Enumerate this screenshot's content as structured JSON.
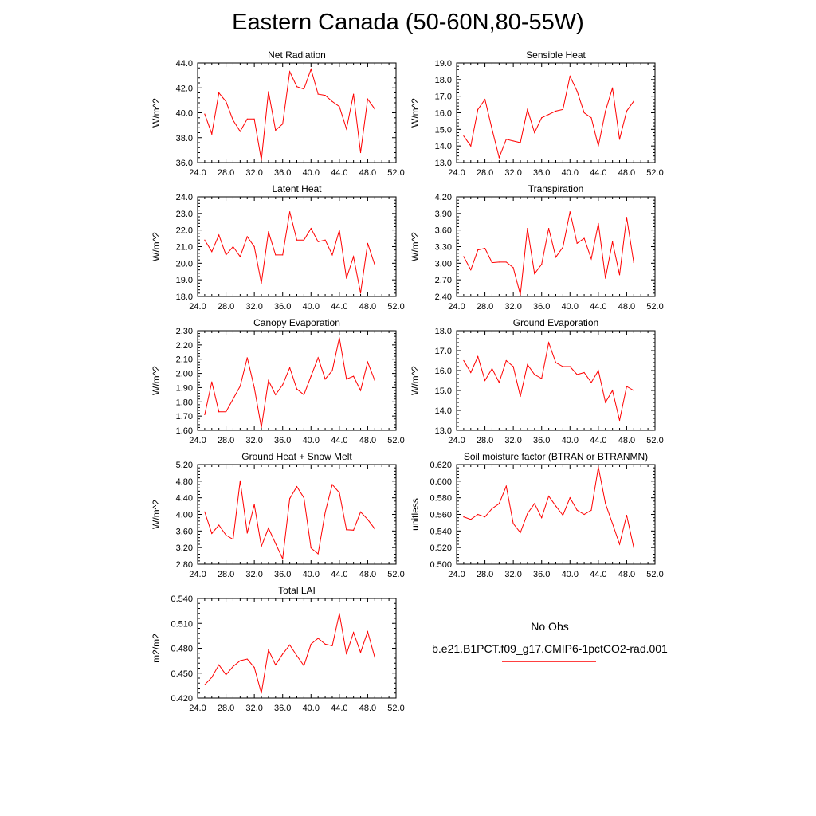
{
  "title": "Eastern Canada (50-60N,80-55W)",
  "legend": {
    "obs_label": "No Obs",
    "model_label": "b.e21.B1PCT.f09_g17.CMIP6-1pctCO2-rad.001",
    "obs_color": "#3a3aa0",
    "model_color": "#ff0000"
  },
  "chart_data": [
    {
      "type": "line",
      "title": "Net Radiation",
      "ylabel": "W/m^2",
      "xlim": [
        24,
        52
      ],
      "ylim": [
        36,
        44
      ],
      "xticks": [
        "24.0",
        "28.0",
        "32.0",
        "36.0",
        "40.0",
        "44.0",
        "48.0",
        "52.0"
      ],
      "yticks": [
        "36.0",
        "38.0",
        "40.0",
        "42.0",
        "44.0"
      ],
      "x": [
        25,
        26,
        27,
        28,
        29,
        30,
        31,
        32,
        33,
        34,
        35,
        36,
        37,
        38,
        39,
        40,
        41,
        42,
        43,
        44,
        45,
        46,
        47,
        48,
        49
      ],
      "series": [
        {
          "values": [
            39.9,
            38.3,
            41.6,
            40.9,
            39.4,
            38.5,
            39.5,
            39.5,
            36.2,
            41.7,
            38.6,
            39.1,
            43.3,
            42.1,
            41.9,
            43.5,
            41.5,
            41.4,
            40.9,
            40.5,
            38.7,
            41.5,
            36.8,
            41.1,
            40.3
          ]
        }
      ]
    },
    {
      "type": "line",
      "title": "Sensible Heat",
      "ylabel": "W/m^2",
      "xlim": [
        24,
        52
      ],
      "ylim": [
        13,
        19
      ],
      "xticks": [
        "24.0",
        "28.0",
        "32.0",
        "36.0",
        "40.0",
        "44.0",
        "48.0",
        "52.0"
      ],
      "yticks": [
        "13.0",
        "14.0",
        "15.0",
        "16.0",
        "17.0",
        "18.0",
        "19.0"
      ],
      "x": [
        25,
        26,
        27,
        28,
        29,
        30,
        31,
        32,
        33,
        34,
        35,
        36,
        37,
        38,
        39,
        40,
        41,
        42,
        43,
        44,
        45,
        46,
        47,
        48,
        49
      ],
      "series": [
        {
          "values": [
            14.6,
            14.0,
            16.2,
            16.8,
            15.0,
            13.3,
            14.4,
            14.3,
            14.2,
            16.2,
            14.8,
            15.7,
            15.9,
            16.1,
            16.2,
            18.2,
            17.3,
            16.0,
            15.7,
            14.0,
            16.1,
            17.5,
            14.4,
            16.1,
            16.7
          ]
        }
      ]
    },
    {
      "type": "line",
      "title": "Latent Heat",
      "ylabel": "W/m^2",
      "xlim": [
        24,
        52
      ],
      "ylim": [
        18,
        24
      ],
      "xticks": [
        "24.0",
        "28.0",
        "32.0",
        "36.0",
        "40.0",
        "44.0",
        "48.0",
        "52.0"
      ],
      "yticks": [
        "18.0",
        "19.0",
        "20.0",
        "21.0",
        "22.0",
        "23.0",
        "24.0"
      ],
      "x": [
        25,
        26,
        27,
        28,
        29,
        30,
        31,
        32,
        33,
        34,
        35,
        36,
        37,
        38,
        39,
        40,
        41,
        42,
        43,
        44,
        45,
        46,
        47,
        48,
        49
      ],
      "series": [
        {
          "values": [
            21.4,
            20.7,
            21.7,
            20.5,
            21.0,
            20.4,
            21.6,
            21.0,
            18.8,
            21.9,
            20.5,
            20.5,
            23.1,
            21.4,
            21.4,
            22.1,
            21.3,
            21.4,
            20.5,
            22.0,
            19.1,
            20.4,
            18.2,
            21.2,
            19.9
          ]
        }
      ]
    },
    {
      "type": "line",
      "title": "Transpiration",
      "ylabel": "W/m^2",
      "xlim": [
        24,
        52
      ],
      "ylim": [
        2.4,
        4.2
      ],
      "xticks": [
        "24.0",
        "28.0",
        "32.0",
        "36.0",
        "40.0",
        "44.0",
        "48.0",
        "52.0"
      ],
      "yticks": [
        "2.40",
        "2.70",
        "3.00",
        "3.30",
        "3.60",
        "3.90",
        "4.20"
      ],
      "x": [
        25,
        26,
        27,
        28,
        29,
        30,
        31,
        32,
        33,
        34,
        35,
        36,
        37,
        38,
        39,
        40,
        41,
        42,
        43,
        44,
        45,
        46,
        47,
        48,
        49
      ],
      "series": [
        {
          "values": [
            3.12,
            2.88,
            3.24,
            3.27,
            3.01,
            3.02,
            3.02,
            2.92,
            2.43,
            3.63,
            2.81,
            2.98,
            3.63,
            3.11,
            3.29,
            3.93,
            3.36,
            3.45,
            3.08,
            3.72,
            2.73,
            3.39,
            2.79,
            3.83,
            3.01
          ]
        }
      ]
    },
    {
      "type": "line",
      "title": "Canopy Evaporation",
      "ylabel": "W/m^2",
      "xlim": [
        24,
        52
      ],
      "ylim": [
        1.6,
        2.3
      ],
      "xticks": [
        "24.0",
        "28.0",
        "32.0",
        "36.0",
        "40.0",
        "44.0",
        "48.0",
        "52.0"
      ],
      "yticks": [
        "1.60",
        "1.70",
        "1.80",
        "1.90",
        "2.00",
        "2.10",
        "2.20",
        "2.30"
      ],
      "x": [
        25,
        26,
        27,
        28,
        29,
        30,
        31,
        32,
        33,
        34,
        35,
        36,
        37,
        38,
        39,
        40,
        41,
        42,
        43,
        44,
        45,
        46,
        47,
        48,
        49
      ],
      "series": [
        {
          "values": [
            1.71,
            1.94,
            1.73,
            1.73,
            1.82,
            1.91,
            2.11,
            1.9,
            1.62,
            1.95,
            1.85,
            1.92,
            2.04,
            1.89,
            1.85,
            1.98,
            2.11,
            1.96,
            2.02,
            2.25,
            1.96,
            1.98,
            1.88,
            2.08,
            1.95
          ]
        }
      ]
    },
    {
      "type": "line",
      "title": "Ground Evaporation",
      "ylabel": "W/m^2",
      "xlim": [
        24,
        52
      ],
      "ylim": [
        13,
        18
      ],
      "xticks": [
        "24.0",
        "28.0",
        "32.0",
        "36.0",
        "40.0",
        "44.0",
        "48.0",
        "52.0"
      ],
      "yticks": [
        "13.0",
        "14.0",
        "15.0",
        "16.0",
        "17.0",
        "18.0"
      ],
      "x": [
        25,
        26,
        27,
        28,
        29,
        30,
        31,
        32,
        33,
        34,
        35,
        36,
        37,
        38,
        39,
        40,
        41,
        42,
        43,
        44,
        45,
        46,
        47,
        48,
        49
      ],
      "series": [
        {
          "values": [
            16.5,
            15.9,
            16.7,
            15.5,
            16.1,
            15.4,
            16.5,
            16.2,
            14.7,
            16.3,
            15.8,
            15.6,
            17.4,
            16.4,
            16.2,
            16.2,
            15.8,
            15.9,
            15.4,
            16.0,
            14.4,
            15.0,
            13.5,
            15.2,
            15.0
          ]
        }
      ]
    },
    {
      "type": "line",
      "title": "Ground Heat + Snow Melt",
      "ylabel": "W/m^2",
      "xlim": [
        24,
        52
      ],
      "ylim": [
        2.8,
        5.2
      ],
      "xticks": [
        "24.0",
        "28.0",
        "32.0",
        "36.0",
        "40.0",
        "44.0",
        "48.0",
        "52.0"
      ],
      "yticks": [
        "2.80",
        "3.20",
        "3.60",
        "4.00",
        "4.40",
        "4.80",
        "5.20"
      ],
      "x": [
        25,
        26,
        27,
        28,
        29,
        30,
        31,
        32,
        33,
        34,
        35,
        36,
        37,
        38,
        39,
        40,
        41,
        42,
        43,
        44,
        45,
        46,
        47,
        48,
        49
      ],
      "series": [
        {
          "values": [
            4.06,
            3.54,
            3.74,
            3.5,
            3.4,
            4.81,
            3.55,
            4.24,
            3.23,
            3.67,
            3.3,
            2.93,
            4.38,
            4.67,
            4.4,
            3.19,
            3.05,
            4.05,
            4.72,
            4.52,
            3.63,
            3.62,
            4.06,
            3.88,
            3.65
          ]
        }
      ]
    },
    {
      "type": "line",
      "title": "Soil moisture factor (BTRAN or BTRANMN)",
      "ylabel": "unitless",
      "xlim": [
        24,
        52
      ],
      "ylim": [
        0.5,
        0.62
      ],
      "xticks": [
        "24.0",
        "28.0",
        "32.0",
        "36.0",
        "40.0",
        "44.0",
        "48.0",
        "52.0"
      ],
      "yticks": [
        "0.500",
        "0.520",
        "0.540",
        "0.560",
        "0.580",
        "0.600",
        "0.620"
      ],
      "x": [
        25,
        26,
        27,
        28,
        29,
        30,
        31,
        32,
        33,
        34,
        35,
        36,
        37,
        38,
        39,
        40,
        41,
        42,
        43,
        44,
        45,
        46,
        47,
        48,
        49
      ],
      "series": [
        {
          "values": [
            0.557,
            0.554,
            0.56,
            0.557,
            0.567,
            0.573,
            0.594,
            0.549,
            0.538,
            0.561,
            0.573,
            0.556,
            0.582,
            0.57,
            0.559,
            0.58,
            0.565,
            0.56,
            0.565,
            0.617,
            0.573,
            0.549,
            0.524,
            0.559,
            0.52
          ]
        }
      ]
    },
    {
      "type": "line",
      "title": "Total LAI",
      "ylabel": "m2/m2",
      "xlim": [
        24,
        52
      ],
      "ylim": [
        0.42,
        0.54
      ],
      "xticks": [
        "24.0",
        "28.0",
        "32.0",
        "36.0",
        "40.0",
        "44.0",
        "48.0",
        "52.0"
      ],
      "yticks": [
        "0.420",
        "0.450",
        "0.480",
        "0.510",
        "0.540"
      ],
      "x": [
        25,
        26,
        27,
        28,
        29,
        30,
        31,
        32,
        33,
        34,
        35,
        36,
        37,
        38,
        39,
        40,
        41,
        42,
        43,
        44,
        45,
        46,
        47,
        48,
        49
      ],
      "series": [
        {
          "values": [
            0.436,
            0.445,
            0.46,
            0.448,
            0.458,
            0.465,
            0.467,
            0.457,
            0.426,
            0.478,
            0.46,
            0.473,
            0.484,
            0.471,
            0.459,
            0.485,
            0.492,
            0.485,
            0.483,
            0.522,
            0.473,
            0.499,
            0.475,
            0.5,
            0.469
          ]
        }
      ]
    }
  ]
}
